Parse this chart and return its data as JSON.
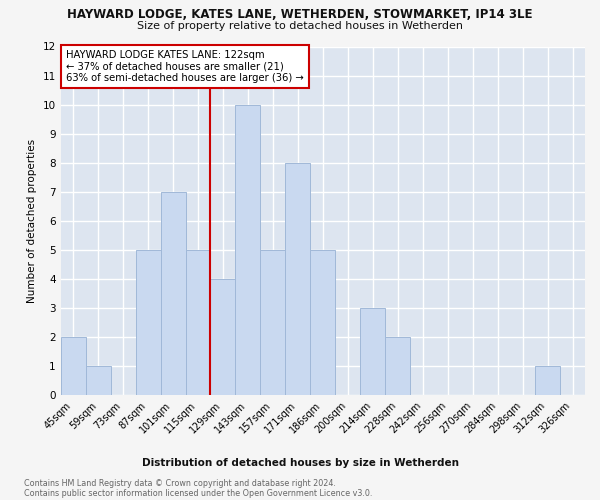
{
  "title": "HAYWARD LODGE, KATES LANE, WETHERDEN, STOWMARKET, IP14 3LE",
  "subtitle": "Size of property relative to detached houses in Wetherden",
  "xlabel": "Distribution of detached houses by size in Wetherden",
  "ylabel": "Number of detached properties",
  "bar_color": "#c9d9f0",
  "bar_edgecolor": "#a0b8d8",
  "categories": [
    "45sqm",
    "59sqm",
    "73sqm",
    "87sqm",
    "101sqm",
    "115sqm",
    "129sqm",
    "143sqm",
    "157sqm",
    "171sqm",
    "186sqm",
    "200sqm",
    "214sqm",
    "228sqm",
    "242sqm",
    "256sqm",
    "270sqm",
    "284sqm",
    "298sqm",
    "312sqm",
    "326sqm"
  ],
  "values": [
    2,
    1,
    0,
    5,
    7,
    5,
    4,
    10,
    5,
    8,
    5,
    0,
    3,
    2,
    0,
    0,
    0,
    0,
    0,
    1,
    0
  ],
  "vline_index": 6,
  "annotation_text": "HAYWARD LODGE KATES LANE: 122sqm\n← 37% of detached houses are smaller (21)\n63% of semi-detached houses are larger (36) →",
  "annotation_box_facecolor": "#ffffff",
  "annotation_box_edgecolor": "#cc0000",
  "vline_color": "#cc0000",
  "ylim": [
    0,
    12
  ],
  "yticks": [
    0,
    1,
    2,
    3,
    4,
    5,
    6,
    7,
    8,
    9,
    10,
    11,
    12
  ],
  "fig_facecolor": "#f5f5f5",
  "ax_facecolor": "#dde5f0",
  "grid_color": "#ffffff",
  "footer_line1": "Contains HM Land Registry data © Crown copyright and database right 2024.",
  "footer_line2": "Contains public sector information licensed under the Open Government Licence v3.0."
}
